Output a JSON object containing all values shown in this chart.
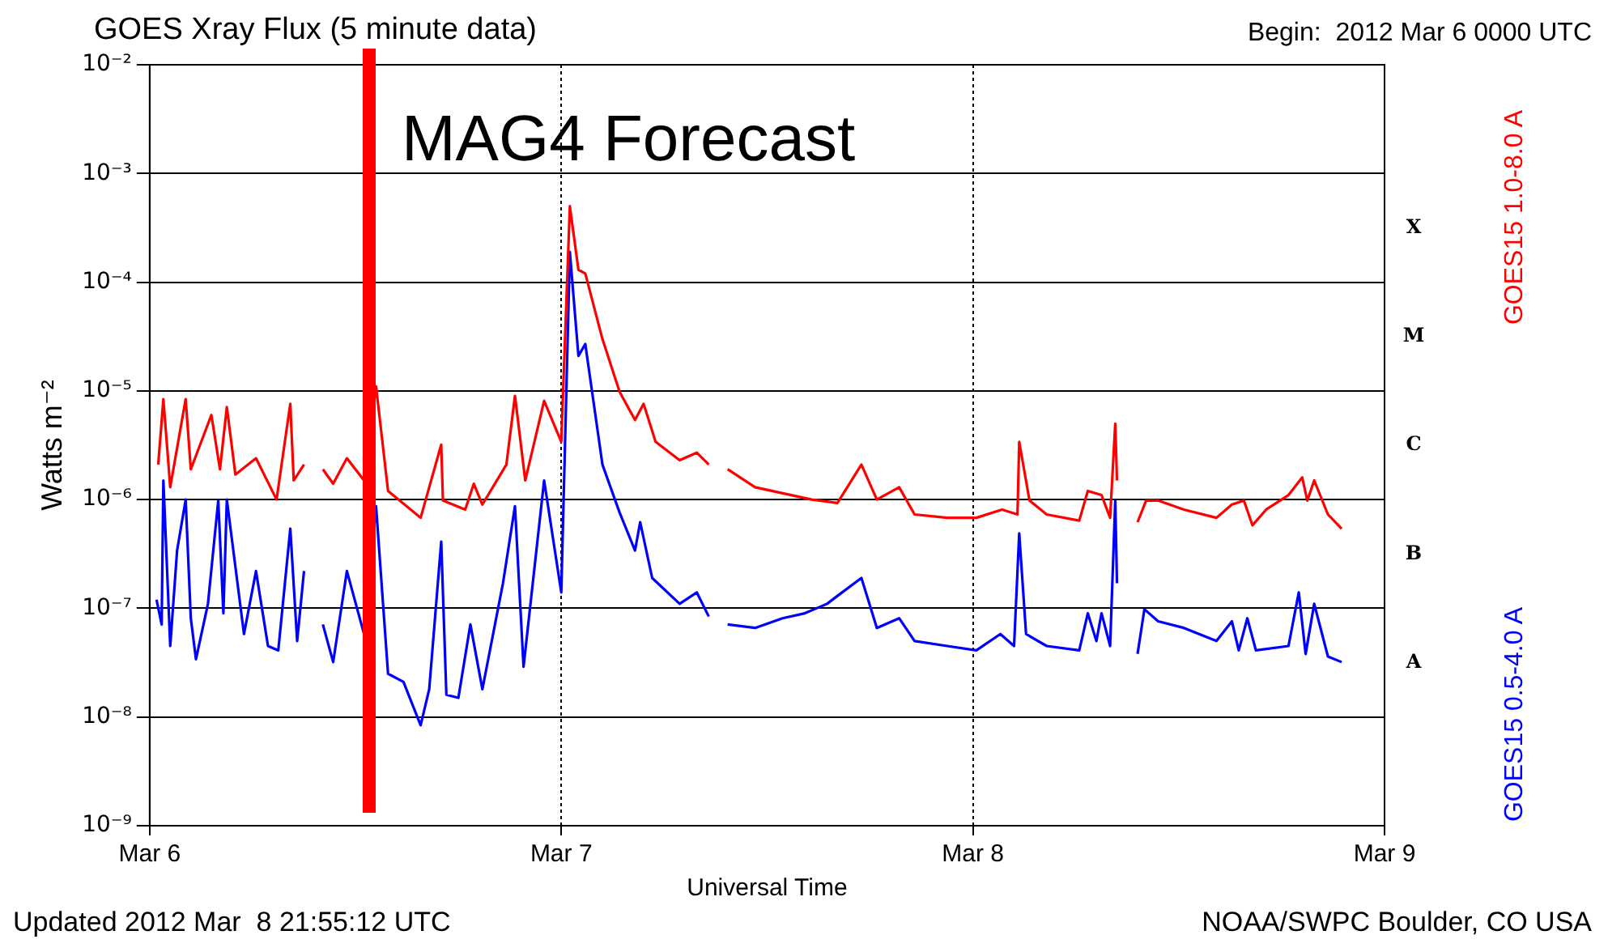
{
  "chart_data": {
    "type": "line",
    "title": "GOES Xray Flux (5 minute data)",
    "subtitle": "Begin:  2012 Mar 6 0000 UTC",
    "xlabel": "Universal Time",
    "ylabel": "Watts m⁻²",
    "annotations": [
      "Updated 2012 Mar  8 21:55:12 UTC",
      "NOAA/SWPC Boulder, CO USA",
      "A",
      "B",
      "C",
      "M",
      "X"
    ],
    "xlim": [
      "2012-03-06",
      "2012-03-09"
    ],
    "xticks": [
      {
        "value": "2012-03-06",
        "label": "Mar 6"
      },
      {
        "value": "2012-03-07",
        "label": "Mar 7"
      },
      {
        "value": "2012-03-08",
        "label": "Mar 8"
      },
      {
        "value": "2012-03-09",
        "label": "Mar 9"
      }
    ],
    "ylim": [
      1e-09,
      0.01
    ],
    "yticks": [
      {
        "value": 1e-09,
        "label": "10⁻⁹"
      },
      {
        "value": 1e-08,
        "label": "10⁻⁸"
      },
      {
        "value": 1e-07,
        "label": "10⁻⁷"
      },
      {
        "value": 1e-06,
        "label": "10⁻⁶"
      },
      {
        "value": 1e-05,
        "label": "10⁻⁵"
      },
      {
        "value": 0.0001,
        "label": "10⁻⁴"
      },
      {
        "value": 0.001,
        "label": "10⁻³"
      },
      {
        "value": 0.01,
        "label": "10⁻²"
      }
    ],
    "log": "y",
    "grid": true,
    "legend": "right",
    "ref_lines": [
      {
        "axis": "x",
        "value": "2012-03-06T12:48",
        "label": "MAG4 Forecast",
        "color": "#ff0000"
      }
    ],
    "series": [
      {
        "name": "GOES15 1.0-8.0 A",
        "color": "#ff0000",
        "x": [
          "2012-03-06T00:30",
          "2012-03-06T00:48",
          "2012-03-06T01:12",
          "2012-03-06T02:06",
          "2012-03-06T02:24",
          "2012-03-06T03:36",
          "2012-03-06T04:06",
          "2012-03-06T04:30",
          "2012-03-06T05:00",
          "2012-03-06T06:12",
          "2012-03-06T07:24",
          "2012-03-06T08:12",
          "2012-03-06T08:24",
          "2012-03-06T09:00",
          "2012-03-06T09:36",
          "2012-03-06T10:06",
          "2012-03-06T10:42",
          "2012-03-06T11:30",
          "2012-03-06T12:30",
          "2012-03-06T13:12",
          "2012-03-06T13:54",
          "2012-03-06T15:48",
          "2012-03-06T17:00",
          "2012-03-06T17:06",
          "2012-03-06T18:24",
          "2012-03-06T18:54",
          "2012-03-06T19:24",
          "2012-03-06T20:48",
          "2012-03-06T21:18",
          "2012-03-06T21:54",
          "2012-03-06T23:00",
          "2012-03-07T00:00",
          "2012-03-07T00:30",
          "2012-03-07T01:00",
          "2012-03-07T01:24",
          "2012-03-07T02:24",
          "2012-03-07T03:24",
          "2012-03-07T04:18",
          "2012-03-07T04:48",
          "2012-03-07T05:30",
          "2012-03-07T06:54",
          "2012-03-07T07:54",
          "2012-03-07T08:36",
          "2012-03-07T09:00",
          "2012-03-07T09:42",
          "2012-03-07T11:18",
          "2012-03-07T14:36",
          "2012-03-07T16:06",
          "2012-03-07T17:30",
          "2012-03-07T18:24",
          "2012-03-07T19:42",
          "2012-03-07T20:36",
          "2012-03-07T22:30",
          "2012-03-08T00:12",
          "2012-03-08T01:42",
          "2012-03-08T02:36",
          "2012-03-08T02:42",
          "2012-03-08T03:18",
          "2012-03-08T04:18",
          "2012-03-08T06:12",
          "2012-03-08T06:42",
          "2012-03-08T07:30",
          "2012-03-08T08:00",
          "2012-03-08T08:18",
          "2012-03-08T08:24",
          "2012-03-08T09:00",
          "2012-03-08T09:36",
          "2012-03-08T10:06",
          "2012-03-08T10:48",
          "2012-03-08T12:18",
          "2012-03-08T14:12",
          "2012-03-08T15:06",
          "2012-03-08T15:48",
          "2012-03-08T16:18",
          "2012-03-08T17:06",
          "2012-03-08T18:24",
          "2012-03-08T19:12",
          "2012-03-08T19:30",
          "2012-03-08T19:54",
          "2012-03-08T20:42",
          "2012-03-08T21:30"
        ],
        "values": [
          2.1e-06,
          8.4e-06,
          1.3e-06,
          8.4e-06,
          1.9e-06,
          6e-06,
          1.9e-06,
          7.1e-06,
          1.7e-06,
          2.4e-06,
          1e-06,
          7.6e-06,
          1.5e-06,
          2.1e-06,
          null,
          1.9e-06,
          1.4e-06,
          2.4e-06,
          1.5e-06,
          1.1e-05,
          1.2e-06,
          6.8e-07,
          3.2e-06,
          9.8e-07,
          8.1e-07,
          1.4e-06,
          9e-07,
          2.1e-06,
          9e-06,
          1.5e-06,
          8.1e-06,
          3.4e-06,
          0.0005,
          0.00013,
          0.00012,
          3e-05,
          9.8e-06,
          5.4e-06,
          7.6e-06,
          3.4e-06,
          2.3e-06,
          2.7e-06,
          2.1e-06,
          null,
          1.9e-06,
          1.3e-06,
          1e-06,
          9.3e-07,
          2.1e-06,
          1e-06,
          1.3e-06,
          7.3e-07,
          6.8e-07,
          6.8e-07,
          8.1e-07,
          7.3e-07,
          3.4e-06,
          9.8e-07,
          7.3e-07,
          6.4e-07,
          1.2e-06,
          1.1e-06,
          6.8e-07,
          5e-06,
          1.5e-06,
          null,
          6.2e-07,
          9.8e-07,
          9.8e-07,
          8.1e-07,
          6.8e-07,
          9e-07,
          9.8e-07,
          5.8e-07,
          8.1e-07,
          1.1e-06,
          1.6e-06,
          9.8e-07,
          1.5e-06,
          7.3e-07,
          5.4e-07
        ]
      },
      {
        "name": "GOES15 0.5-4.0 A",
        "color": "#0000ff",
        "x": [
          "2012-03-06T00:24",
          "2012-03-06T00:42",
          "2012-03-06T00:48",
          "2012-03-06T01:12",
          "2012-03-06T01:36",
          "2012-03-06T02:06",
          "2012-03-06T02:24",
          "2012-03-06T02:42",
          "2012-03-06T03:24",
          "2012-03-06T04:00",
          "2012-03-06T04:18",
          "2012-03-06T04:30",
          "2012-03-06T05:30",
          "2012-03-06T06:12",
          "2012-03-06T06:54",
          "2012-03-06T07:30",
          "2012-03-06T08:12",
          "2012-03-06T08:36",
          "2012-03-06T09:00",
          "2012-03-06T09:36",
          "2012-03-06T10:06",
          "2012-03-06T10:42",
          "2012-03-06T11:30",
          "2012-03-06T12:30",
          "2012-03-06T13:12",
          "2012-03-06T13:54",
          "2012-03-06T14:48",
          "2012-03-06T15:48",
          "2012-03-06T16:18",
          "2012-03-06T17:00",
          "2012-03-06T17:18",
          "2012-03-06T18:00",
          "2012-03-06T18:42",
          "2012-03-06T19:24",
          "2012-03-06T20:36",
          "2012-03-06T21:18",
          "2012-03-06T21:48",
          "2012-03-06T23:00",
          "2012-03-07T00:00",
          "2012-03-07T00:30",
          "2012-03-07T01:00",
          "2012-03-07T01:24",
          "2012-03-07T02:24",
          "2012-03-07T03:24",
          "2012-03-07T04:18",
          "2012-03-07T04:36",
          "2012-03-07T05:18",
          "2012-03-07T06:54",
          "2012-03-07T07:54",
          "2012-03-07T08:36",
          "2012-03-07T09:00",
          "2012-03-07T09:42",
          "2012-03-07T11:18",
          "2012-03-07T12:54",
          "2012-03-07T14:12",
          "2012-03-07T15:30",
          "2012-03-07T16:06",
          "2012-03-07T17:30",
          "2012-03-07T18:24",
          "2012-03-07T19:42",
          "2012-03-07T20:36",
          "2012-03-07T22:30",
          "2012-03-08T00:12",
          "2012-03-08T01:36",
          "2012-03-08T02:24",
          "2012-03-08T02:42",
          "2012-03-08T03:06",
          "2012-03-08T04:18",
          "2012-03-08T06:12",
          "2012-03-08T06:42",
          "2012-03-08T07:12",
          "2012-03-08T07:30",
          "2012-03-08T08:00",
          "2012-03-08T08:18",
          "2012-03-08T08:24",
          "2012-03-08T09:00",
          "2012-03-08T09:36",
          "2012-03-08T10:00",
          "2012-03-08T10:48",
          "2012-03-08T12:18",
          "2012-03-08T14:12",
          "2012-03-08T15:06",
          "2012-03-08T15:30",
          "2012-03-08T16:00",
          "2012-03-08T16:30",
          "2012-03-08T18:24",
          "2012-03-08T19:00",
          "2012-03-08T19:24",
          "2012-03-08T19:54",
          "2012-03-08T20:42",
          "2012-03-08T21:30"
        ],
        "values": [
          1.2e-07,
          7.1e-08,
          1.5e-06,
          4.5e-08,
          3.4e-07,
          1e-06,
          8.1e-08,
          3.4e-08,
          1.1e-07,
          9.8e-07,
          9e-08,
          1e-06,
          5.8e-08,
          2.2e-07,
          4.5e-08,
          4.1e-08,
          5.4e-07,
          5e-08,
          2.2e-07,
          null,
          7.1e-08,
          3.2e-08,
          2.2e-07,
          5.8e-08,
          8.7e-07,
          2.5e-08,
          2.1e-08,
          8.4e-09,
          1.8e-08,
          4.1e-07,
          1.6e-08,
          1.5e-08,
          7.1e-08,
          1.8e-08,
          1.7e-07,
          8.7e-07,
          2.9e-08,
          1.5e-06,
          1.4e-07,
          0.00019,
          2.1e-05,
          2.7e-05,
          2.1e-06,
          7.6e-07,
          3.4e-07,
          6.2e-07,
          1.9e-07,
          1.1e-07,
          1.4e-07,
          8.4e-08,
          null,
          7.1e-08,
          6.6e-08,
          8.1e-08,
          9e-08,
          1.1e-07,
          1.3e-07,
          1.9e-07,
          6.6e-08,
          8.1e-08,
          5e-08,
          4.5e-08,
          4.1e-08,
          5.8e-08,
          4.5e-08,
          4.9e-07,
          5.8e-08,
          4.5e-08,
          4.1e-08,
          9e-08,
          5e-08,
          9e-08,
          4.5e-08,
          9.8e-07,
          1.7e-07,
          null,
          3.8e-08,
          9.8e-08,
          7.6e-08,
          6.6e-08,
          5e-08,
          7.6e-08,
          4.1e-08,
          8.1e-08,
          4.1e-08,
          4.5e-08,
          1.4e-07,
          3.8e-08,
          1.1e-07,
          3.6e-08,
          3.2e-08
        ]
      }
    ]
  }
}
